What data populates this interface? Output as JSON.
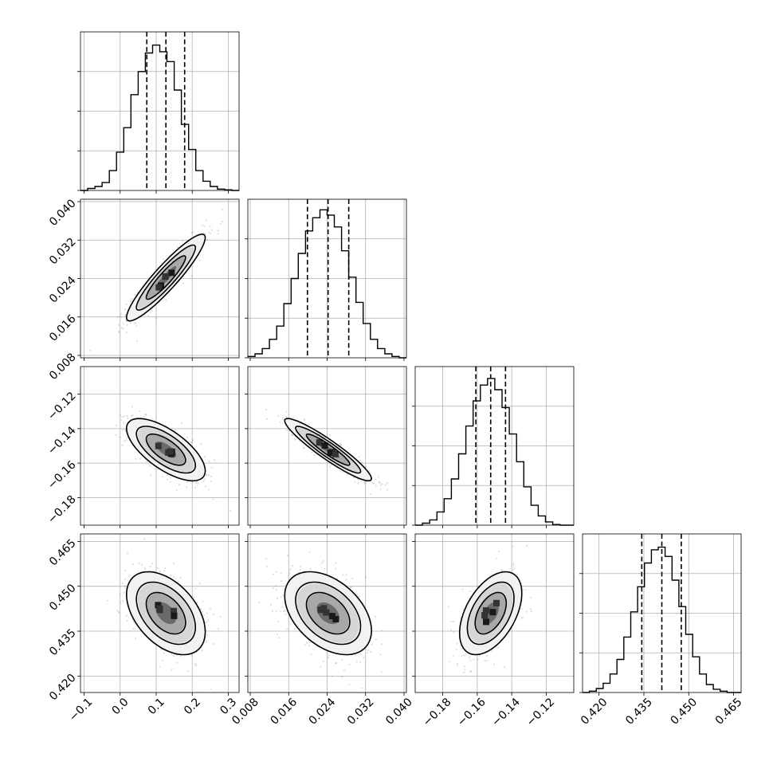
{
  "chart_data": {
    "type": "corner",
    "grid": true,
    "parameters": [
      {
        "index": 0,
        "range": [
          -0.11,
          0.33
        ],
        "ticks": [
          "-0.1",
          "0.0",
          "0.1",
          "0.2",
          "0.3"
        ],
        "tick_values": [
          -0.1,
          0.0,
          0.1,
          0.2,
          0.3
        ],
        "quantiles": [
          0.074,
          0.127,
          0.179
        ],
        "histogram": {
          "bin_edges": [
            -0.11,
            -0.09,
            -0.07,
            -0.05,
            -0.03,
            -0.01,
            0.01,
            0.03,
            0.05,
            0.07,
            0.09,
            0.11,
            0.13,
            0.15,
            0.17,
            0.19,
            0.21,
            0.23,
            0.25,
            0.27,
            0.29,
            0.31,
            0.33
          ],
          "counts": [
            0,
            3,
            6,
            12,
            30,
            58,
            95,
            145,
            180,
            208,
            220,
            210,
            195,
            152,
            100,
            62,
            30,
            14,
            6,
            2,
            1,
            0
          ],
          "max_count": 240
        }
      },
      {
        "index": 1,
        "range": [
          0.0075,
          0.0405
        ],
        "ticks": [
          "0.008",
          "0.016",
          "0.024",
          "0.032",
          "0.040"
        ],
        "tick_values": [
          0.008,
          0.016,
          0.024,
          0.032,
          0.04
        ],
        "quantiles": [
          0.0199,
          0.0242,
          0.0285
        ],
        "histogram": {
          "bin_edges": [
            0.0075,
            0.009,
            0.0105,
            0.012,
            0.0135,
            0.015,
            0.0165,
            0.018,
            0.0195,
            0.021,
            0.0225,
            0.024,
            0.0255,
            0.027,
            0.0285,
            0.03,
            0.0315,
            0.033,
            0.0345,
            0.036,
            0.0375,
            0.039,
            0.0405
          ],
          "counts": [
            2,
            6,
            14,
            28,
            48,
            82,
            120,
            158,
            192,
            212,
            224,
            216,
            198,
            162,
            122,
            84,
            52,
            28,
            14,
            6,
            2,
            0
          ],
          "max_count": 240
        }
      },
      {
        "index": 2,
        "range": [
          -0.196,
          -0.104
        ],
        "ticks": [
          "-0.18",
          "-0.16",
          "-0.14",
          "-0.12"
        ],
        "tick_values": [
          -0.18,
          -0.16,
          -0.14,
          -0.12
        ],
        "quantiles": [
          -0.1608,
          -0.1522,
          -0.1436
        ],
        "histogram": {
          "bin_edges": [
            -0.196,
            -0.1918,
            -0.1876,
            -0.1834,
            -0.1792,
            -0.175,
            -0.1708,
            -0.1666,
            -0.1624,
            -0.1582,
            -0.154,
            -0.1498,
            -0.1456,
            -0.1414,
            -0.1372,
            -0.133,
            -0.1288,
            -0.1246,
            -0.1204,
            -0.1162,
            -0.112,
            -0.104
          ],
          "counts": [
            0,
            3,
            8,
            20,
            40,
            70,
            108,
            150,
            188,
            212,
            222,
            205,
            178,
            138,
            96,
            58,
            30,
            14,
            5,
            1,
            0
          ],
          "max_count": 240
        }
      },
      {
        "index": 3,
        "range": [
          0.4145,
          0.4675
        ],
        "ticks": [
          "0.420",
          "0.435",
          "0.450",
          "0.465"
        ],
        "tick_values": [
          0.42,
          0.435,
          0.45,
          0.465
        ],
        "quantiles": [
          0.4343,
          0.441,
          0.4475
        ],
        "histogram": {
          "bin_edges": [
            0.4145,
            0.4168,
            0.4191,
            0.4214,
            0.4237,
            0.426,
            0.4283,
            0.4306,
            0.4329,
            0.4352,
            0.4375,
            0.4398,
            0.4421,
            0.4444,
            0.4467,
            0.449,
            0.4513,
            0.4536,
            0.4559,
            0.4582,
            0.4605,
            0.4628,
            0.4675
          ],
          "counts": [
            0,
            2,
            6,
            14,
            28,
            50,
            84,
            122,
            160,
            196,
            216,
            220,
            206,
            170,
            130,
            88,
            54,
            28,
            12,
            5,
            2,
            0
          ],
          "max_count": 240
        }
      }
    ],
    "pairs": [
      {
        "x": 0,
        "y": 1,
        "mean": [
          0.127,
          0.0242
        ],
        "std": [
          0.052,
          0.0043
        ],
        "corr": 0.92
      },
      {
        "x": 0,
        "y": 2,
        "mean": [
          0.127,
          -0.1522
        ],
        "std": [
          0.052,
          0.0086
        ],
        "corr": -0.68
      },
      {
        "x": 1,
        "y": 2,
        "mean": [
          0.0242,
          -0.1522
        ],
        "std": [
          0.0043,
          0.0086
        ],
        "corr": -0.93
      },
      {
        "x": 0,
        "y": 3,
        "mean": [
          0.127,
          0.441
        ],
        "std": [
          0.052,
          0.0066
        ],
        "corr": -0.45
      },
      {
        "x": 1,
        "y": 3,
        "mean": [
          0.0242,
          0.441
        ],
        "std": [
          0.0043,
          0.0066
        ],
        "corr": -0.42
      },
      {
        "x": 2,
        "y": 3,
        "mean": [
          -0.1522,
          0.441
        ],
        "std": [
          0.0086,
          0.0066
        ],
        "corr": 0.48
      }
    ],
    "contour_levels_sigma": [
      0.5,
      1.0,
      1.5,
      2.0
    ]
  }
}
